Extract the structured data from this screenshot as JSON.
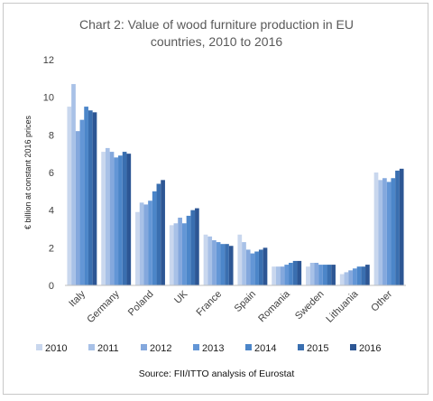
{
  "chart_data": {
    "type": "bar",
    "title_line1": "Chart 2: Value of wood furniture production in EU",
    "title_line2": "countries, 2010 to 2016",
    "ylabel": "€ billion at constant 2016 prices",
    "xlabel": "",
    "ylim": [
      0,
      12
    ],
    "yticks": [
      0,
      2,
      4,
      6,
      8,
      10,
      12
    ],
    "grid": false,
    "legend_position": "bottom",
    "source": "Source: FII/ITTO analysis of Eurostat",
    "categories": [
      "Italy",
      "Germany",
      "Poland",
      "UK",
      "France",
      "Spain",
      "Romania",
      "Sweden",
      "Lithuania",
      "Other"
    ],
    "series": [
      {
        "name": "2010",
        "color": "#c9d7ee",
        "values": [
          9.5,
          7.1,
          3.9,
          3.2,
          2.7,
          2.7,
          1.0,
          1.0,
          0.6,
          6.0
        ]
      },
      {
        "name": "2011",
        "color": "#a8c1e7",
        "values": [
          10.7,
          7.3,
          4.4,
          3.3,
          2.6,
          2.3,
          1.0,
          1.2,
          0.7,
          5.6
        ]
      },
      {
        "name": "2012",
        "color": "#84a8dd",
        "values": [
          8.2,
          7.1,
          4.3,
          3.6,
          2.4,
          1.9,
          1.0,
          1.2,
          0.8,
          5.7
        ]
      },
      {
        "name": "2013",
        "color": "#6396d6",
        "values": [
          8.8,
          6.8,
          4.5,
          3.3,
          2.3,
          1.7,
          1.1,
          1.1,
          0.9,
          5.5
        ]
      },
      {
        "name": "2014",
        "color": "#4c86c9",
        "values": [
          9.5,
          6.9,
          5.0,
          3.7,
          2.2,
          1.8,
          1.2,
          1.1,
          1.0,
          5.7
        ]
      },
      {
        "name": "2015",
        "color": "#3a6fb0",
        "values": [
          9.3,
          7.1,
          5.4,
          4.0,
          2.2,
          1.9,
          1.3,
          1.1,
          1.0,
          6.1
        ]
      },
      {
        "name": "2016",
        "color": "#2d5694",
        "values": [
          9.2,
          7.0,
          5.6,
          4.1,
          2.1,
          2.0,
          1.3,
          1.1,
          1.1,
          6.2
        ]
      }
    ]
  }
}
